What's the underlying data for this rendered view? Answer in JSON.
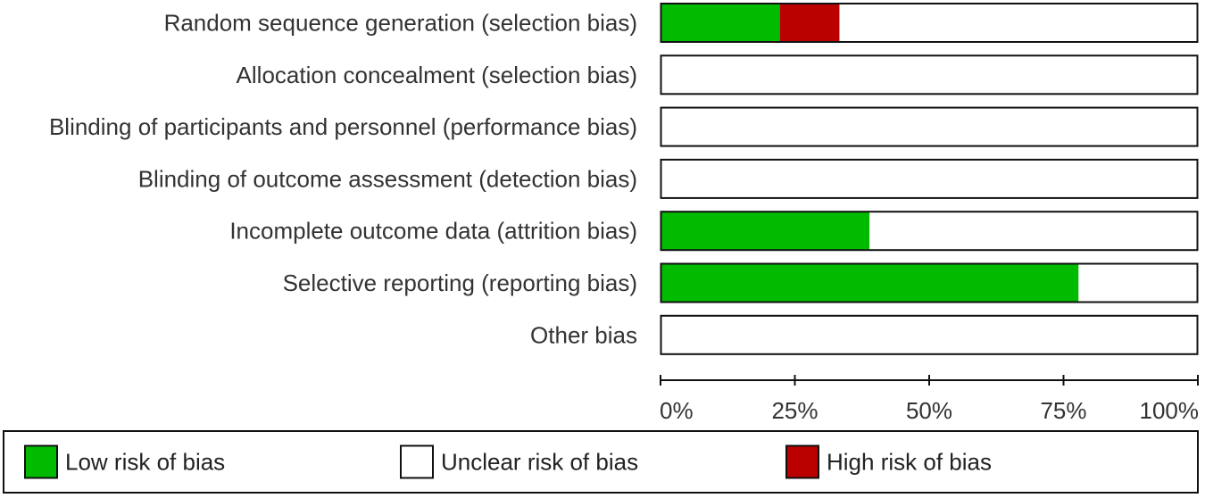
{
  "chart_data": {
    "type": "bar",
    "orientation": "horizontal",
    "stacked": true,
    "normalized_to_percent": true,
    "categories": [
      "Random sequence generation (selection bias)",
      "Allocation concealment (selection bias)",
      "Blinding of participants and personnel (performance bias)",
      "Blinding of outcome assessment (detection bias)",
      "Incomplete outcome data (attrition bias)",
      "Selective reporting (reporting bias)",
      "Other bias"
    ],
    "series": [
      {
        "name": "Low risk of bias",
        "color": "#00bb00",
        "values": [
          22.2,
          0,
          0,
          0,
          38.9,
          77.8,
          0
        ]
      },
      {
        "name": "High risk of bias",
        "color": "#bb0000",
        "values": [
          11.1,
          0,
          0,
          0,
          0,
          0,
          0
        ]
      },
      {
        "name": "Unclear risk of bias",
        "color": "#ffffff",
        "values": [
          66.7,
          100,
          100,
          100,
          61.1,
          22.2,
          100
        ]
      }
    ],
    "xlim": [
      0,
      100
    ],
    "x_ticks": [
      0,
      25,
      50,
      75,
      100
    ],
    "x_tick_labels": [
      "0%",
      "25%",
      "50%",
      "75%",
      "100%"
    ],
    "legend": {
      "placement": "bottom",
      "items": [
        {
          "label": "Low risk of bias",
          "color": "#00bb00"
        },
        {
          "label": "Unclear risk of bias",
          "color": "#ffffff"
        },
        {
          "label": "High risk of bias",
          "color": "#bb0000"
        }
      ]
    },
    "title": "",
    "xlabel": "",
    "ylabel": ""
  }
}
